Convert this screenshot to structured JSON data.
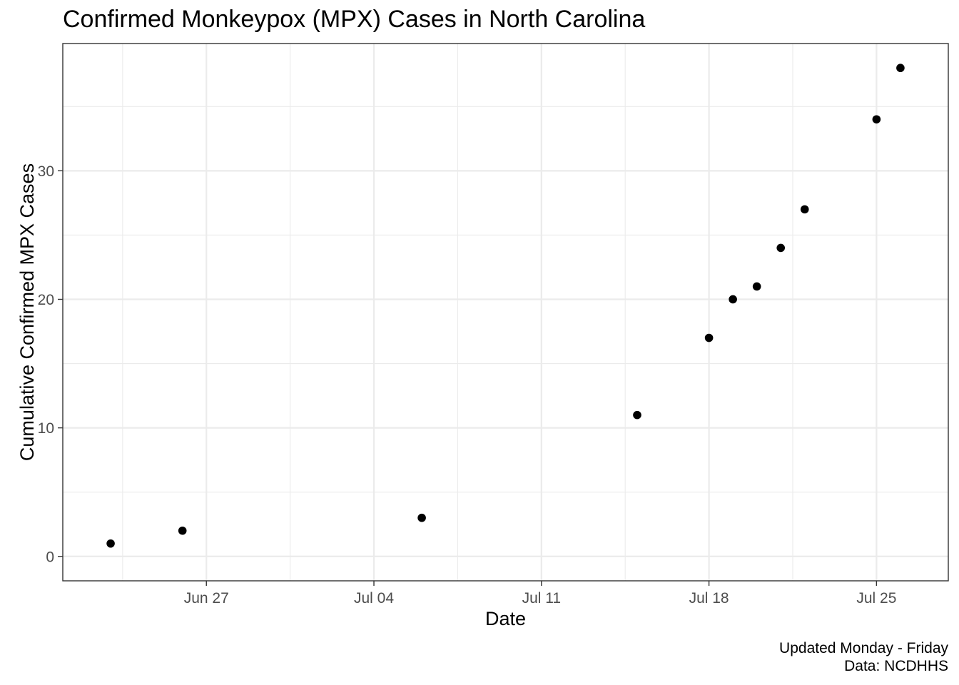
{
  "chart_data": {
    "type": "scatter",
    "title": "Confirmed Monkeypox (MPX) Cases in North Carolina",
    "xlabel": "Date",
    "ylabel": "Cumulative Confirmed MPX Cases",
    "caption": [
      "Updated Monday - Friday",
      "Data: NCDHHS"
    ],
    "x_axis_type": "date",
    "x_ticks": [
      {
        "date": "2022-06-27",
        "label": "Jun 27"
      },
      {
        "date": "2022-07-04",
        "label": "Jul 04"
      },
      {
        "date": "2022-07-11",
        "label": "Jul 11"
      },
      {
        "date": "2022-07-18",
        "label": "Jul 18"
      },
      {
        "date": "2022-07-25",
        "label": "Jul 25"
      }
    ],
    "y_ticks": [
      0,
      10,
      20,
      30
    ],
    "xlim": [
      "2022-06-21",
      "2022-07-28"
    ],
    "ylim": [
      -1.9,
      39.9
    ],
    "grid": true,
    "point_color": "#000000",
    "series": [
      {
        "points": [
          {
            "x": "2022-06-23",
            "y": 1
          },
          {
            "x": "2022-06-26",
            "y": 2
          },
          {
            "x": "2022-07-06",
            "y": 3
          },
          {
            "x": "2022-07-15",
            "y": 11
          },
          {
            "x": "2022-07-18",
            "y": 17
          },
          {
            "x": "2022-07-19",
            "y": 20
          },
          {
            "x": "2022-07-20",
            "y": 21
          },
          {
            "x": "2022-07-21",
            "y": 24
          },
          {
            "x": "2022-07-22",
            "y": 27
          },
          {
            "x": "2022-07-25",
            "y": 34
          },
          {
            "x": "2022-07-26",
            "y": 38
          }
        ]
      }
    ]
  }
}
